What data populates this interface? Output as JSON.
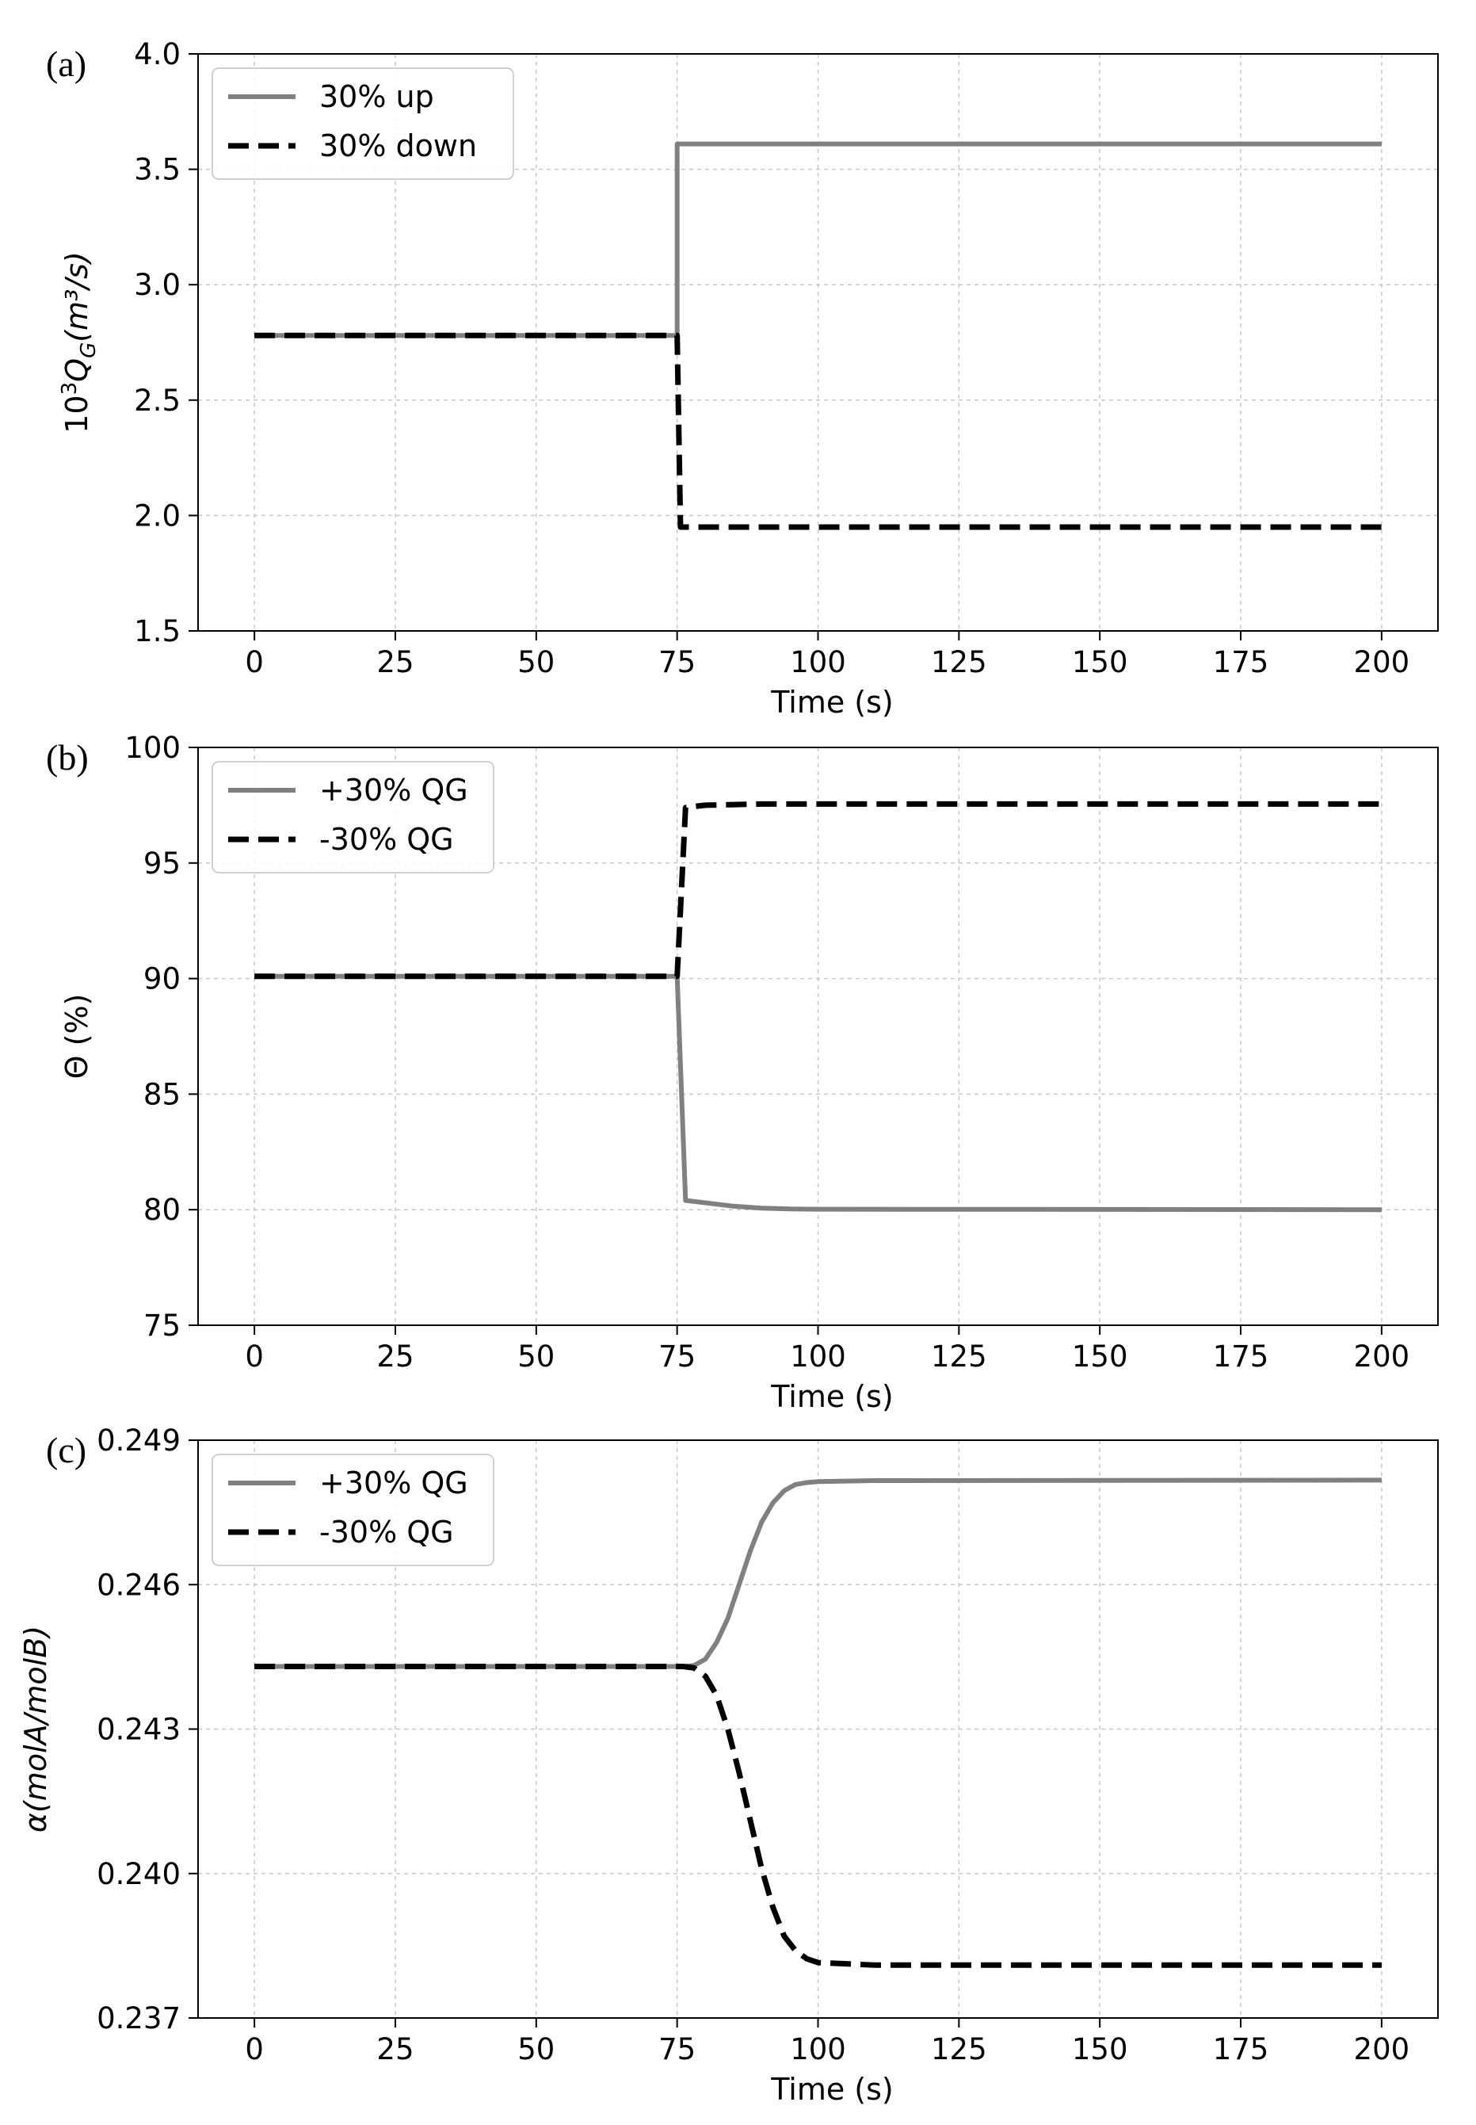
{
  "chart_data": [
    {
      "type": "line",
      "panel_label": "(a)",
      "xlabel": "Time (s)",
      "ylabel": {
        "pre": "10",
        "sup": "3",
        "var": "Q",
        "sub": "G",
        "post": "(m³/s)"
      },
      "xlim": [
        -10,
        210
      ],
      "ylim": [
        1.5,
        4.0
      ],
      "xticks": [
        0,
        25,
        50,
        75,
        100,
        125,
        150,
        175,
        200
      ],
      "yticks": [
        "1.5",
        "2.0",
        "2.5",
        "3.0",
        "3.5",
        "4.0"
      ],
      "grid": true,
      "legend_position": "top-left",
      "series": [
        {
          "name": "30% up",
          "color": "#808080",
          "dash": "solid",
          "points": [
            [
              0,
              2.78
            ],
            [
              75,
              2.78
            ],
            [
              75,
              3.61
            ],
            [
              200,
              3.61
            ]
          ]
        },
        {
          "name": "30% down",
          "color": "#000000",
          "dash": "dashed",
          "points": [
            [
              0,
              2.78
            ],
            [
              75,
              2.78
            ],
            [
              75.6,
              1.95
            ],
            [
              200,
              1.95
            ]
          ]
        }
      ]
    },
    {
      "type": "line",
      "panel_label": "(b)",
      "xlabel": "Time (s)",
      "ylabel": {
        "pre": "",
        "sup": "",
        "var": "",
        "sub": "",
        "post": "Θ (%)"
      },
      "xlim": [
        -10,
        210
      ],
      "ylim": [
        75,
        100
      ],
      "xticks": [
        0,
        25,
        50,
        75,
        100,
        125,
        150,
        175,
        200
      ],
      "yticks": [
        "75",
        "80",
        "85",
        "90",
        "95",
        "100"
      ],
      "grid": true,
      "legend_position": "top-left",
      "series": [
        {
          "name": "+30% QG",
          "color": "#808080",
          "dash": "solid",
          "points": [
            [
              0,
              90.1
            ],
            [
              75,
              90.1
            ],
            [
              76.5,
              80.4
            ],
            [
              80,
              80.3
            ],
            [
              85,
              80.15
            ],
            [
              90,
              80.07
            ],
            [
              95,
              80.03
            ],
            [
              100,
              80.02
            ],
            [
              200,
              80.0
            ]
          ]
        },
        {
          "name": "-30% QG",
          "color": "#000000",
          "dash": "dashed",
          "points": [
            [
              0,
              90.1
            ],
            [
              75,
              90.1
            ],
            [
              76.5,
              97.4
            ],
            [
              80,
              97.5
            ],
            [
              90,
              97.55
            ],
            [
              100,
              97.55
            ],
            [
              200,
              97.55
            ]
          ]
        }
      ]
    },
    {
      "type": "line",
      "panel_label": "(c)",
      "xlabel": "Time (s)",
      "ylabel": {
        "pre": "",
        "sup": "",
        "var": "α(molA/molB)",
        "sub": "",
        "post": ""
      },
      "xlim": [
        -10,
        210
      ],
      "ylim": [
        0.237,
        0.249
      ],
      "xticks": [
        0,
        25,
        50,
        75,
        100,
        125,
        150,
        175,
        200
      ],
      "yticks": [
        "0.237",
        "0.240",
        "0.243",
        "0.246",
        "0.249"
      ],
      "grid": true,
      "legend_position": "top-left",
      "series": [
        {
          "name": "+30% QG",
          "color": "#808080",
          "dash": "solid",
          "points": [
            [
              0,
              0.2443
            ],
            [
              76,
              0.2443
            ],
            [
              78,
              0.24432
            ],
            [
              80,
              0.24445
            ],
            [
              82,
              0.2448
            ],
            [
              84,
              0.2453
            ],
            [
              86,
              0.246
            ],
            [
              88,
              0.2467
            ],
            [
              90,
              0.2473
            ],
            [
              92,
              0.2477
            ],
            [
              94,
              0.24795
            ],
            [
              96,
              0.24808
            ],
            [
              98,
              0.24812
            ],
            [
              100,
              0.24814
            ],
            [
              110,
              0.24816
            ],
            [
              200,
              0.24817
            ]
          ]
        },
        {
          "name": "-30% QG",
          "color": "#000000",
          "dash": "dashed",
          "points": [
            [
              0,
              0.2443
            ],
            [
              76,
              0.2443
            ],
            [
              78,
              0.24427
            ],
            [
              80,
              0.2441
            ],
            [
              82,
              0.2437
            ],
            [
              84,
              0.243
            ],
            [
              86,
              0.2421
            ],
            [
              88,
              0.2411
            ],
            [
              90,
              0.2401
            ],
            [
              92,
              0.2393
            ],
            [
              94,
              0.2387
            ],
            [
              96,
              0.2384
            ],
            [
              98,
              0.23823
            ],
            [
              100,
              0.23815
            ],
            [
              110,
              0.2381
            ],
            [
              200,
              0.2381
            ]
          ]
        }
      ]
    }
  ]
}
